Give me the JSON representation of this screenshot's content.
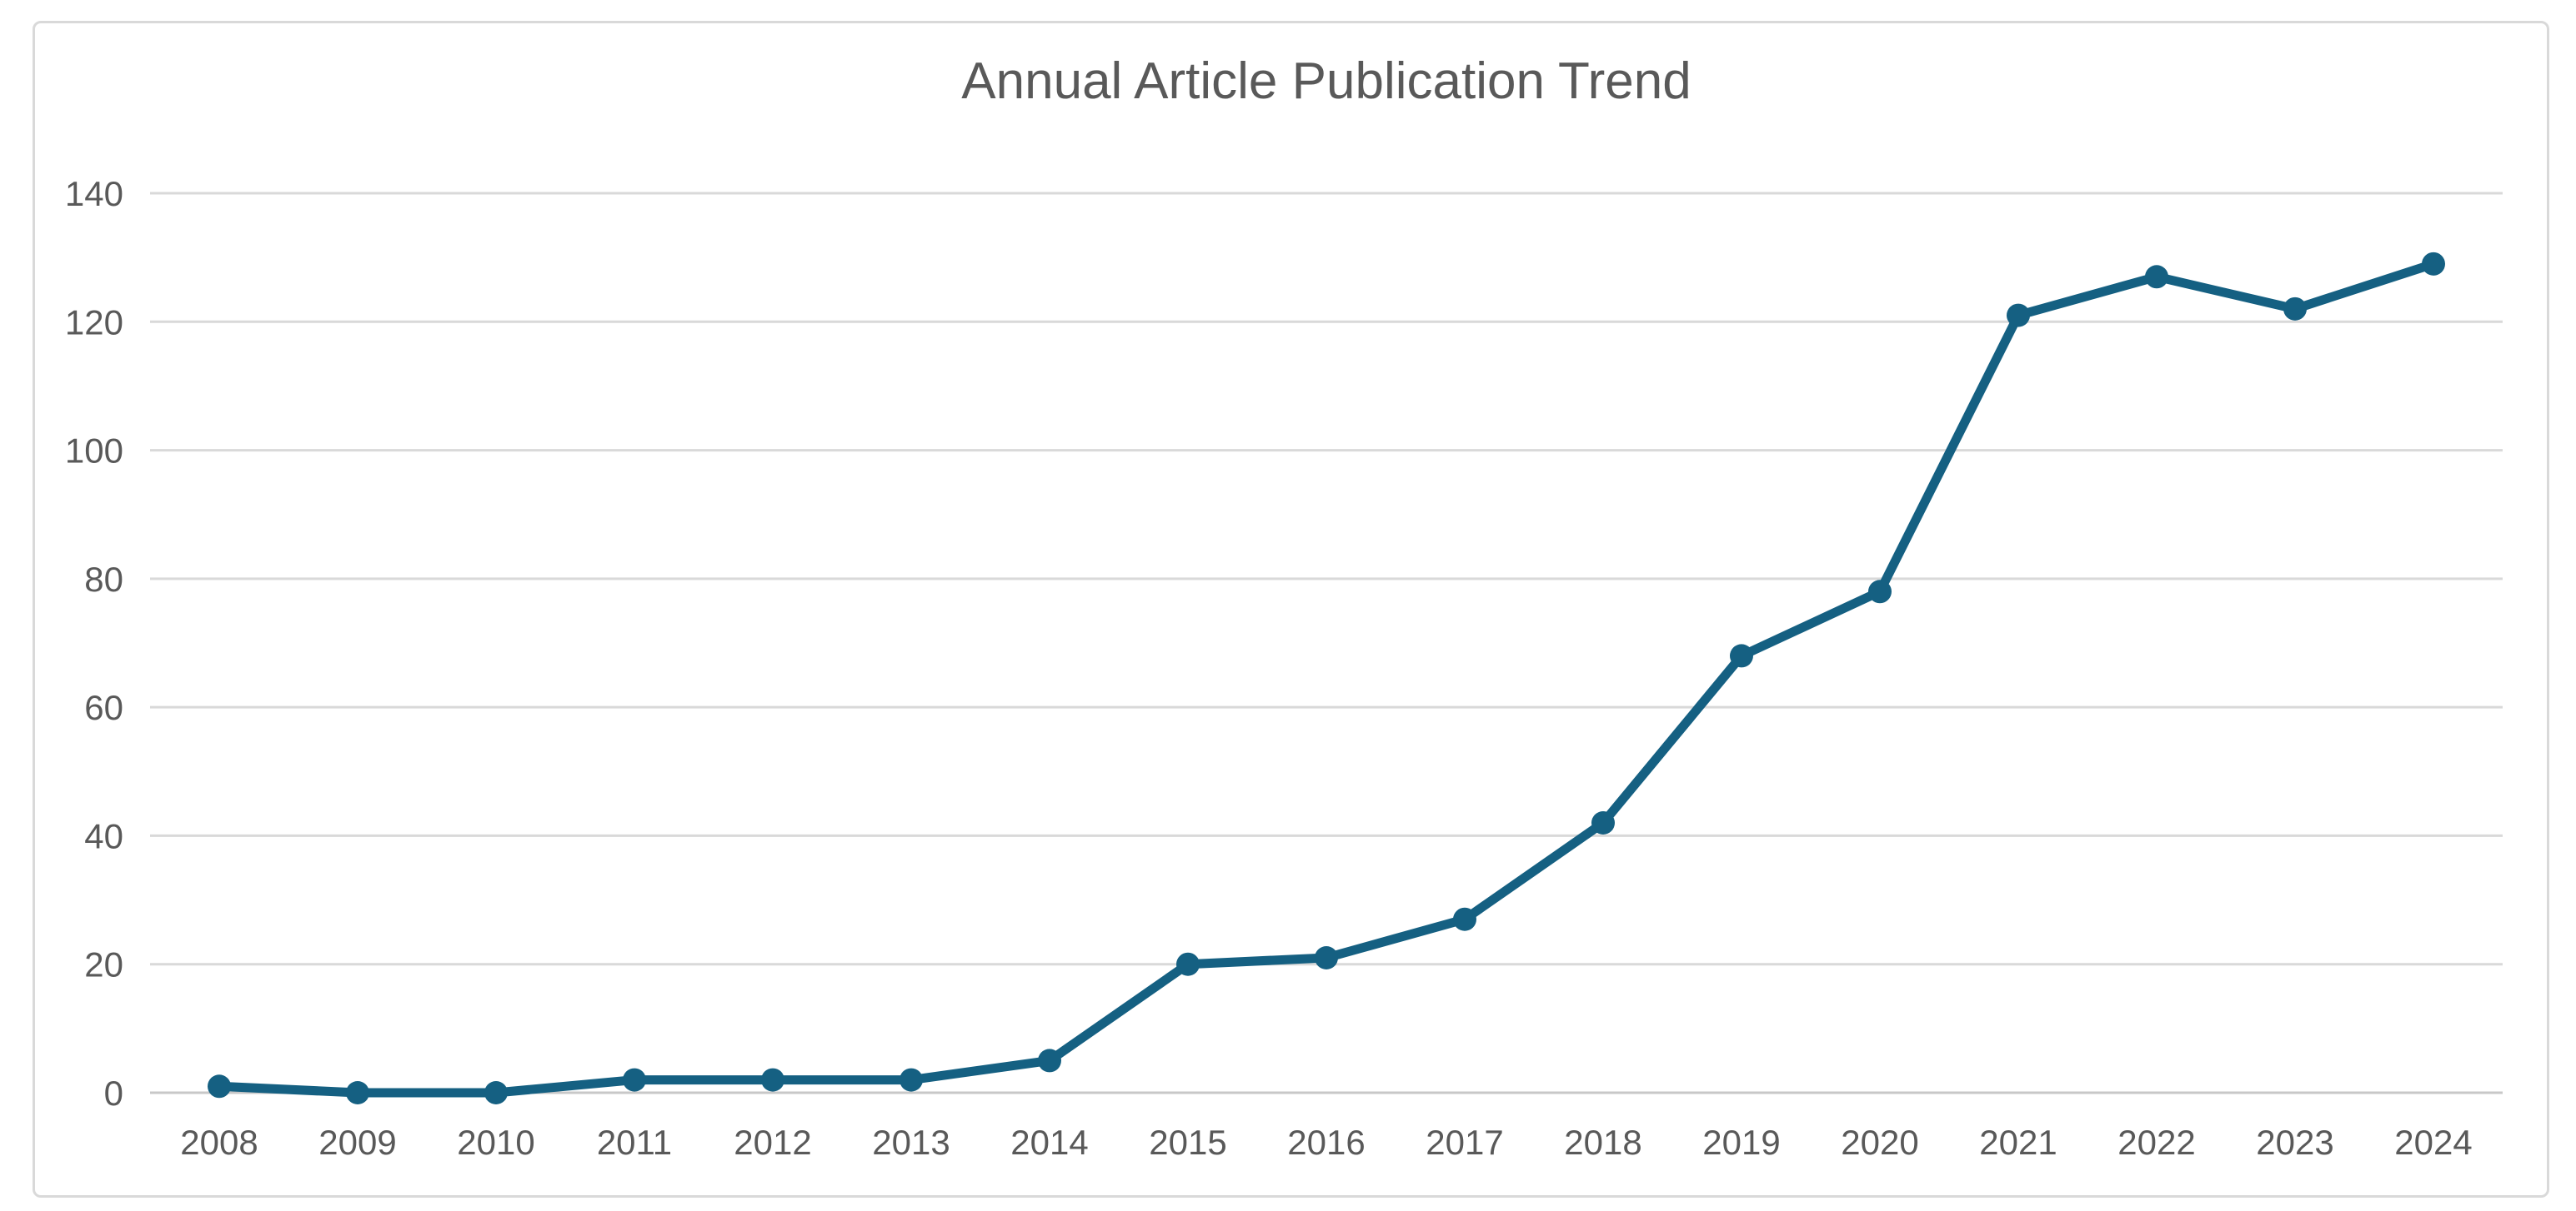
{
  "chart_data": {
    "type": "line",
    "title": "Annual Article Publication Trend",
    "categories": [
      "2008",
      "2009",
      "2010",
      "2011",
      "2012",
      "2013",
      "2014",
      "2015",
      "2016",
      "2017",
      "2018",
      "2019",
      "2020",
      "2021",
      "2022",
      "2023",
      "2024"
    ],
    "values": [
      1,
      0,
      0,
      2,
      2,
      2,
      5,
      20,
      21,
      27,
      42,
      68,
      78,
      121,
      127,
      122,
      129
    ],
    "xlabel": "",
    "ylabel": "",
    "ylim": [
      0,
      140
    ],
    "yticks": [
      0,
      20,
      40,
      60,
      80,
      100,
      120,
      140
    ],
    "grid": "horizontal",
    "legend": "none",
    "marker": "circle"
  },
  "colors": {
    "line": "#156082",
    "marker": "#156082",
    "gridline": "#d9d9d9",
    "axis_line": "#c8c8c8",
    "tick_label": "#595959",
    "title": "#595959",
    "frame_border": "#d9d9d9",
    "background": "#ffffff"
  }
}
